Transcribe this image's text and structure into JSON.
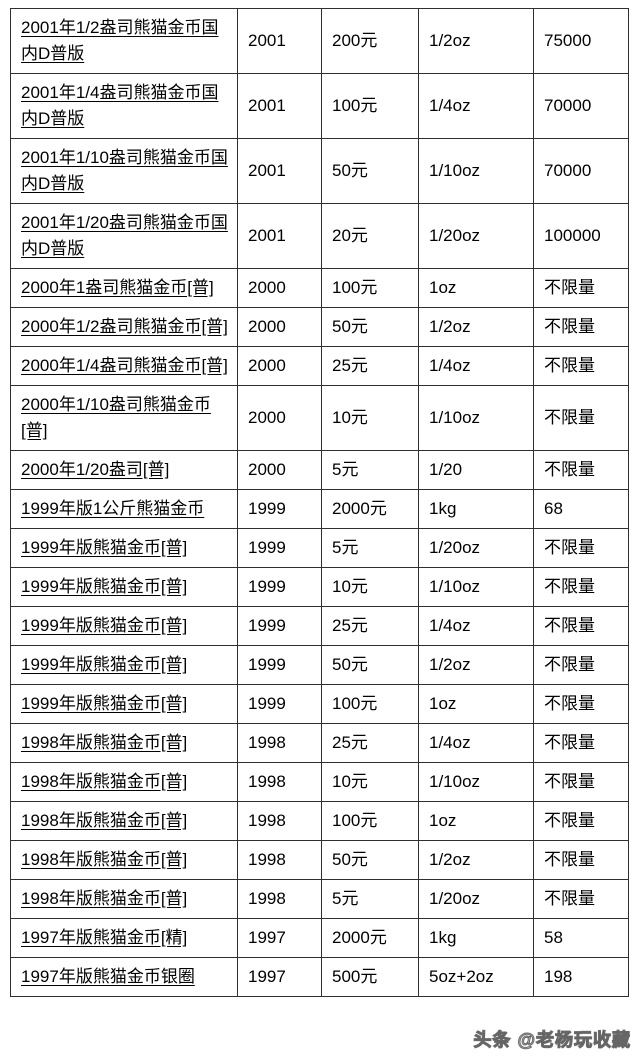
{
  "watermark": "头条 @老杨玩收藏",
  "table": {
    "columns": [
      "name",
      "year",
      "denomination",
      "weight",
      "mintage"
    ],
    "rows": [
      {
        "name": "2001年1/2盎司熊猫金币国内D普版",
        "year": "2001",
        "denomination": "200元",
        "weight": "1/2oz",
        "mintage": "75000"
      },
      {
        "name": "2001年1/4盎司熊猫金币国内D普版",
        "year": "2001",
        "denomination": "100元",
        "weight": "1/4oz",
        "mintage": "70000"
      },
      {
        "name": "2001年1/10盎司熊猫金币国内D普版",
        "year": "2001",
        "denomination": "50元",
        "weight": "1/10oz",
        "mintage": "70000"
      },
      {
        "name": "2001年1/20盎司熊猫金币国内D普版",
        "year": "2001",
        "denomination": "20元",
        "weight": "1/20oz",
        "mintage": "100000"
      },
      {
        "name": "2000年1盎司熊猫金币[普]",
        "year": "2000",
        "denomination": "100元",
        "weight": "1oz",
        "mintage": "不限量"
      },
      {
        "name": "2000年1/2盎司熊猫金币[普]",
        "year": "2000",
        "denomination": "50元",
        "weight": "1/2oz",
        "mintage": "不限量"
      },
      {
        "name": "2000年1/4盎司熊猫金币[普]",
        "year": "2000",
        "denomination": "25元",
        "weight": "1/4oz",
        "mintage": "不限量"
      },
      {
        "name": "2000年1/10盎司熊猫金币[普]",
        "year": "2000",
        "denomination": "10元",
        "weight": "1/10oz",
        "mintage": "不限量"
      },
      {
        "name": "2000年1/20盎司[普]",
        "year": "2000",
        "denomination": "5元",
        "weight": "1/20",
        "mintage": "不限量"
      },
      {
        "name": "1999年版1公斤熊猫金币",
        "year": "1999",
        "denomination": "2000元",
        "weight": "1kg",
        "mintage": "68"
      },
      {
        "name": "1999年版熊猫金币[普]",
        "year": "1999",
        "denomination": "5元",
        "weight": "1/20oz",
        "mintage": "不限量"
      },
      {
        "name": "1999年版熊猫金币[普]",
        "year": "1999",
        "denomination": "10元",
        "weight": "1/10oz",
        "mintage": "不限量"
      },
      {
        "name": "1999年版熊猫金币[普]",
        "year": "1999",
        "denomination": "25元",
        "weight": "1/4oz",
        "mintage": "不限量"
      },
      {
        "name": "1999年版熊猫金币[普]",
        "year": "1999",
        "denomination": "50元",
        "weight": "1/2oz",
        "mintage": "不限量"
      },
      {
        "name": "1999年版熊猫金币[普]",
        "year": "1999",
        "denomination": "100元",
        "weight": "1oz",
        "mintage": "不限量"
      },
      {
        "name": "1998年版熊猫金币[普]",
        "year": "1998",
        "denomination": "25元",
        "weight": "1/4oz",
        "mintage": "不限量"
      },
      {
        "name": "1998年版熊猫金币[普]",
        "year": "1998",
        "denomination": "10元",
        "weight": "1/10oz",
        "mintage": "不限量"
      },
      {
        "name": "1998年版熊猫金币[普]",
        "year": "1998",
        "denomination": "100元",
        "weight": "1oz",
        "mintage": "不限量"
      },
      {
        "name": "1998年版熊猫金币[普]",
        "year": "1998",
        "denomination": "50元",
        "weight": "1/2oz",
        "mintage": "不限量"
      },
      {
        "name": "1998年版熊猫金币[普]",
        "year": "1998",
        "denomination": "5元",
        "weight": "1/20oz",
        "mintage": "不限量"
      },
      {
        "name": "1997年版熊猫金币[精]",
        "year": "1997",
        "denomination": "2000元",
        "weight": "1kg",
        "mintage": "58"
      },
      {
        "name": "1997年版熊猫金币银圈",
        "year": "1997",
        "denomination": "500元",
        "weight": "5oz+2oz",
        "mintage": "198"
      }
    ]
  }
}
